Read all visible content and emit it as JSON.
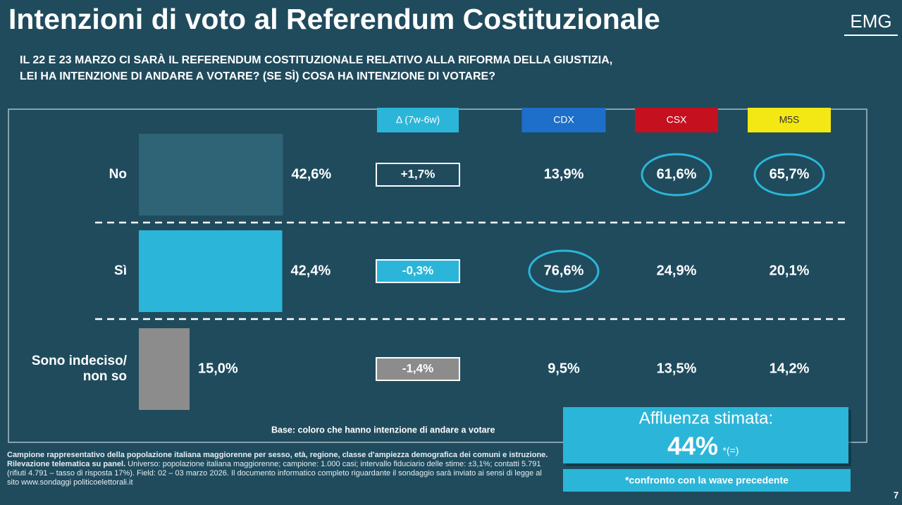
{
  "chart_data": {
    "type": "bar",
    "title": "Intenzioni di voto al Referendum Costituzionale",
    "brand": "EMG",
    "subtitle": [
      "IL 22 E 23 MARZO CI SARÀ IL REFERENDUM COSTITUZIONALE RELATIVO ALLA RIFORMA DELLA GIUSTIZIA,",
      "LEI HA INTENZIONE DI ANDARE A VOTARE? (SE SÌ) COSA HA INTENZIONE DI VOTARE?"
    ],
    "categories": [
      "No",
      "Sì",
      "Sono indeciso/ non so"
    ],
    "values": [
      42.6,
      42.4,
      15.0
    ],
    "value_labels": [
      "42,6%",
      "42,4%",
      "15,0%"
    ],
    "colors": [
      "#2f6376",
      "#2bb6d9",
      "#8c8c8c"
    ],
    "columns": [
      {
        "name": "Δ (7w-6w)",
        "color": "#2bb6d9",
        "values": [
          1.7,
          -0.3,
          -1.4
        ],
        "value_labels": [
          "+1,7%",
          "-0,3%",
          "-1,4%"
        ],
        "highlight": [
          false,
          false,
          false
        ]
      },
      {
        "name": "CDX",
        "color": "#1d6fc9",
        "values": [
          13.9,
          76.6,
          9.5
        ],
        "value_labels": [
          "13,9%",
          "76,6%",
          "9,5%"
        ],
        "highlight": [
          false,
          true,
          false
        ]
      },
      {
        "name": "CSX",
        "color": "#c5101f",
        "values": [
          61.6,
          24.9,
          13.5
        ],
        "value_labels": [
          "61,6%",
          "24,9%",
          "13,5%"
        ],
        "highlight": [
          true,
          false,
          false
        ]
      },
      {
        "name": "M5S",
        "color": "#f3e813",
        "values": [
          65.7,
          20.1,
          14.2
        ],
        "value_labels": [
          "65,7%",
          "20,1%",
          "14,2%"
        ],
        "highlight": [
          true,
          false,
          false
        ]
      }
    ],
    "base_note": "Base: coloro che hanno intenzione di andare a votare",
    "turnout": {
      "label": "Affluenza stimata:",
      "value": "44%",
      "change": "*(=)",
      "note": "*confronto con la wave precedente"
    },
    "footer": {
      "bold": "Campione rappresentativo della popolazione italiana maggiorenne per sesso, età, regione, classe d'ampiezza demografica dei comuni e istruzione. Rilevazione telematica su panel.",
      "text": "Universo: popolazione italiana maggiorenne; campione: 1.000 casi; intervallo fiduciario delle stime: ±3,1%; contatti 5.791 (rifiuti 4.791 – tasso di risposta 17%). Field: 02 – 03 marzo 2026. Il documento informatico completo riguardante il sondaggio sarà inviato ai sensi di legge al sito www.sondaggi politicoelettorali.it"
    },
    "page_number": "7"
  }
}
